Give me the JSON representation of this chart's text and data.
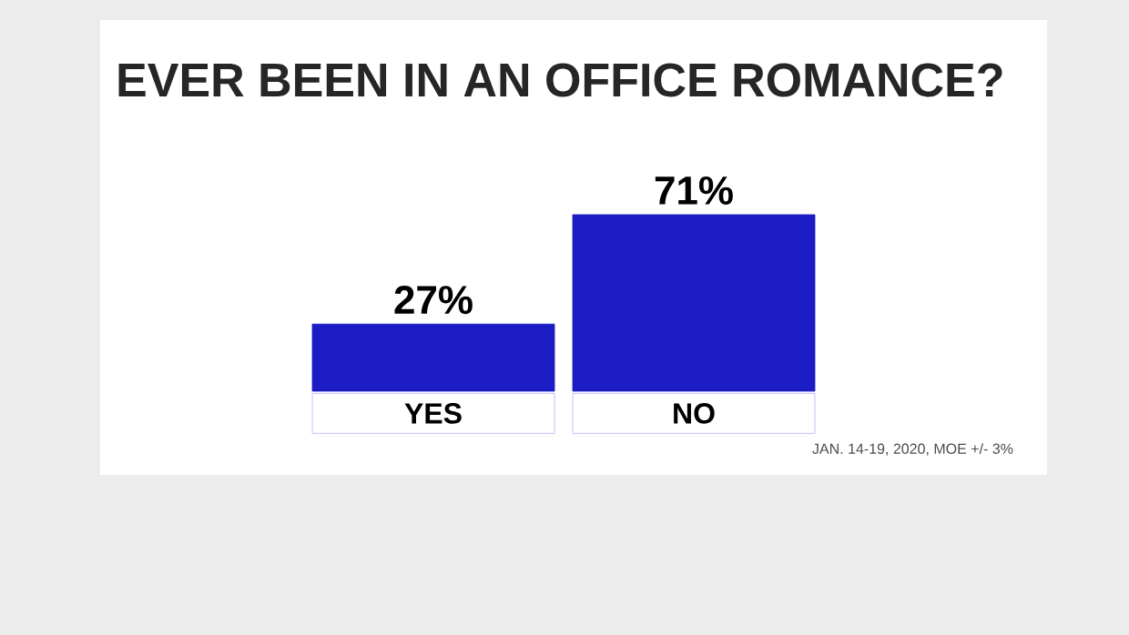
{
  "chart_data": {
    "type": "bar",
    "title": "EVER BEEN IN AN OFFICE ROMANCE?",
    "categories": [
      "YES",
      "NO"
    ],
    "values": [
      27,
      71
    ],
    "value_labels": [
      "27%",
      "71%"
    ],
    "color": "#1c1cc4",
    "annotations": [
      "JAN. 14-19, 2020, MOE +/- 3%"
    ]
  }
}
